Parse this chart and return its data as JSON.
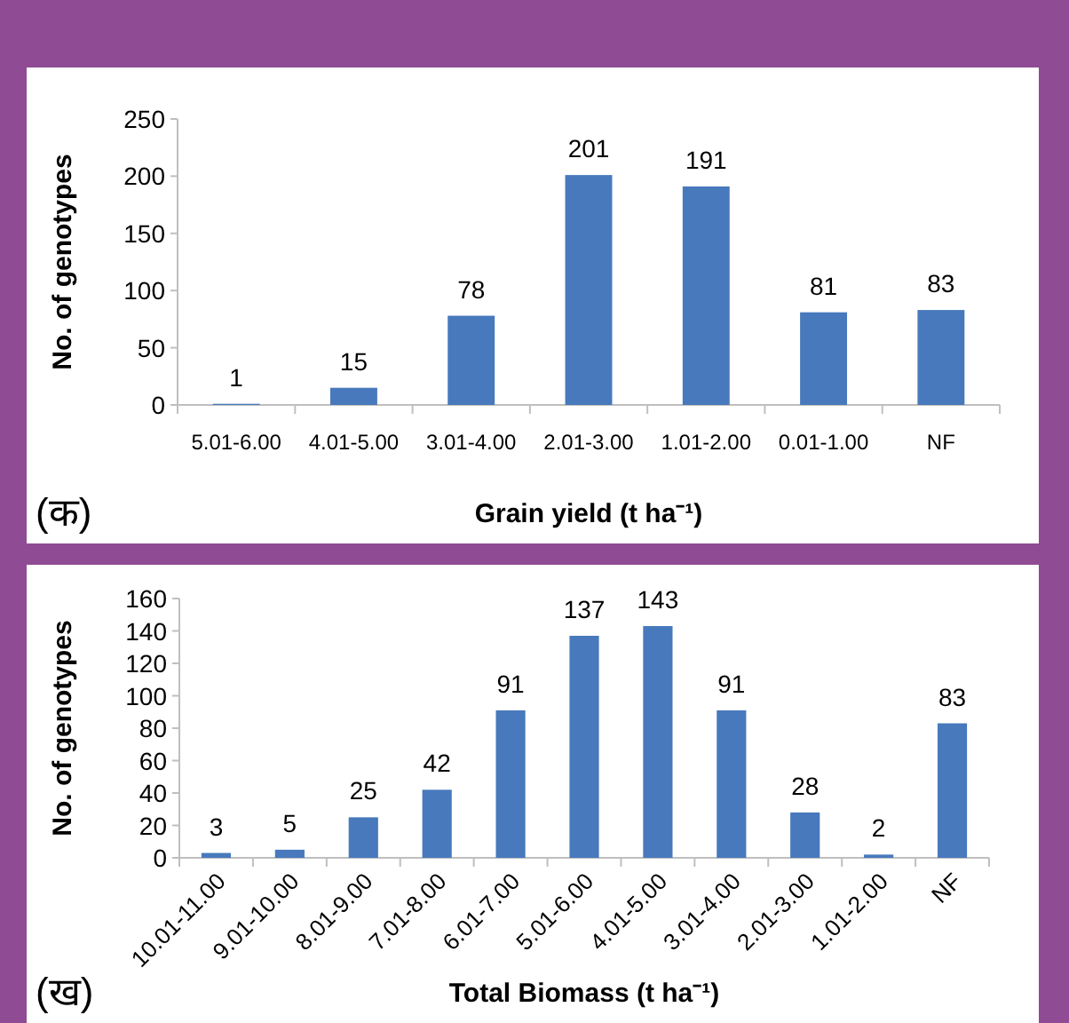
{
  "chart_data": [
    {
      "type": "bar",
      "xlabel": "Grain yield (t ha⁻¹)",
      "ylabel": "No. of genotypes",
      "categories": [
        "5.01-6.00",
        "4.01-5.00",
        "3.01-4.00",
        "2.01-3.00",
        "1.01-2.00",
        "0.01-1.00",
        "NF"
      ],
      "values": [
        1,
        15,
        78,
        201,
        191,
        81,
        83
      ],
      "color": "#4779bc",
      "ylim": [
        0,
        250
      ],
      "yticks": [
        0,
        50,
        100,
        150,
        200,
        250
      ],
      "data_labels": true,
      "annotations": [
        "(क)"
      ]
    },
    {
      "type": "bar",
      "xlabel": "Total Biomass (t ha⁻¹)",
      "ylabel": "No. of genotypes",
      "categories": [
        "10.01-11.00",
        "9.01-10.00",
        "8.01-9.00",
        "7.01-8.00",
        "6.01-7.00",
        "5.01-6.00",
        "4.01-5.00",
        "3.01-4.00",
        "2.01-3.00",
        "1.01-2.00",
        "NF"
      ],
      "values": [
        3,
        5,
        25,
        42,
        91,
        137,
        143,
        91,
        28,
        2,
        83
      ],
      "color": "#4779bc",
      "ylim": [
        0,
        160
      ],
      "yticks": [
        0,
        20,
        40,
        60,
        80,
        100,
        120,
        140,
        160
      ],
      "data_labels": true,
      "annotations": [
        "(ख)"
      ]
    }
  ]
}
